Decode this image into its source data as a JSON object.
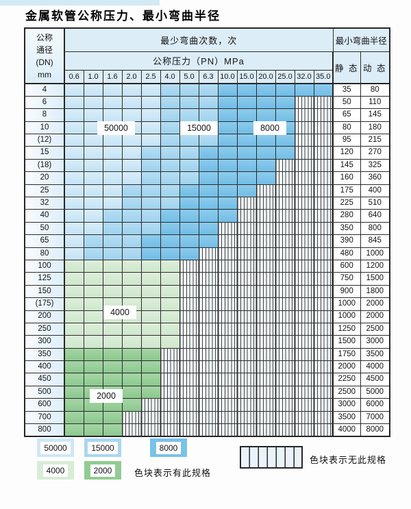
{
  "title": "金属软管公称压力、最小弯曲半径",
  "table": {
    "header": {
      "dn_label": "公称\n通径\n(DN)\nmm",
      "bend_times_label": "最少弯曲次数，次",
      "bend_radius_label": "最小弯曲半径",
      "pressure_label": "公称压力（PN）MPa",
      "static_label": "静 态",
      "dynamic_label": "动 态",
      "pressures": [
        "0.6",
        "1.0",
        "1.6",
        "2.0",
        "2.5",
        "4.0",
        "5.0",
        "6.3",
        "10.0",
        "15.0",
        "20.0",
        "25.0",
        "32.0",
        "35.0"
      ]
    },
    "cell_legend_key": {
      "L": "50000",
      "M": "15000",
      "D": "8000",
      "g": "4000",
      "G": "2000",
      "x": "no-spec"
    },
    "rows": [
      {
        "dn": "4",
        "cells": "LLLLLMMMDDDDDD",
        "static": "35",
        "dynamic": "80"
      },
      {
        "dn": "6",
        "cells": "LLLLLMMMDDDDxx",
        "static": "50",
        "dynamic": "110"
      },
      {
        "dn": "8",
        "cells": "LLLLLMMMDDDDxx",
        "static": "65",
        "dynamic": "145"
      },
      {
        "dn": "10",
        "cells": "LLLLLMMMDDDDxx",
        "static": "80",
        "dynamic": "180"
      },
      {
        "dn": "(12)",
        "cells": "LLLLLMMMDDDDxx",
        "static": "95",
        "dynamic": "215"
      },
      {
        "dn": "15",
        "cells": "LLLLMMMDDDDDxx",
        "static": "120",
        "dynamic": "270"
      },
      {
        "dn": "(18)",
        "cells": "LLLLMMMDDDDxxx",
        "static": "145",
        "dynamic": "325"
      },
      {
        "dn": "20",
        "cells": "LLLLMMMDDDDxxx",
        "static": "160",
        "dynamic": "360"
      },
      {
        "dn": "25",
        "cells": "LLLMMMDDDDxxxx",
        "static": "175",
        "dynamic": "400"
      },
      {
        "dn": "32",
        "cells": "LLLMMMDDDxxxxx",
        "static": "225",
        "dynamic": "510"
      },
      {
        "dn": "40",
        "cells": "LLMMMDDDDxxxxx",
        "static": "280",
        "dynamic": "640"
      },
      {
        "dn": "50",
        "cells": "LLMMMDDDxxxxxx",
        "static": "350",
        "dynamic": "800"
      },
      {
        "dn": "65",
        "cells": "LMMMDDDDxxxxxx",
        "static": "390",
        "dynamic": "845"
      },
      {
        "dn": "80",
        "cells": "LMMMDDDxxxxxxx",
        "static": "480",
        "dynamic": "1000"
      },
      {
        "dn": "100",
        "cells": "ggggggxxxxxxxx",
        "static": "600",
        "dynamic": "1200"
      },
      {
        "dn": "125",
        "cells": "ggggggxxxxxxxx",
        "static": "750",
        "dynamic": "1500"
      },
      {
        "dn": "150",
        "cells": "ggggggxxxxxxxx",
        "static": "900",
        "dynamic": "1800"
      },
      {
        "dn": "(175)",
        "cells": "ggggggxxxxxxxx",
        "static": "1000",
        "dynamic": "2000"
      },
      {
        "dn": "200",
        "cells": "ggggggxxxxxxxx",
        "static": "1000",
        "dynamic": "2000"
      },
      {
        "dn": "250",
        "cells": "ggggggxxxxxxxx",
        "static": "1250",
        "dynamic": "2500"
      },
      {
        "dn": "300",
        "cells": "ggggggxxxxxxxx",
        "static": "1500",
        "dynamic": "3000"
      },
      {
        "dn": "350",
        "cells": "GGGGGxxxxxxxxx",
        "static": "1750",
        "dynamic": "3500"
      },
      {
        "dn": "400",
        "cells": "GGGGGxxxxxxxxx",
        "static": "2000",
        "dynamic": "4000"
      },
      {
        "dn": "450",
        "cells": "GGGGGxxxxxxxxx",
        "static": "2250",
        "dynamic": "4500"
      },
      {
        "dn": "500",
        "cells": "GGGGGxxxxxxxxx",
        "static": "2500",
        "dynamic": "5000"
      },
      {
        "dn": "600",
        "cells": "GGGGxxxxxxxxxx",
        "static": "3000",
        "dynamic": "6000"
      },
      {
        "dn": "700",
        "cells": "GGGxxxxxxxxxxx",
        "static": "3500",
        "dynamic": "7000"
      },
      {
        "dn": "800",
        "cells": "GGGxxxxxxxxxxx",
        "static": "4000",
        "dynamic": "8000"
      }
    ]
  },
  "overlays": {
    "v50000": "50000",
    "v15000": "15000",
    "v8000": "8000",
    "v4000": "4000",
    "v2000": "2000"
  },
  "legend": {
    "items": [
      {
        "value": "50000",
        "color": "#cfe7f7"
      },
      {
        "value": "15000",
        "color": "#a9d6f0"
      },
      {
        "value": "8000",
        "color": "#79c2e9"
      },
      {
        "value": "4000",
        "color": "#d9ecd7"
      },
      {
        "value": "2000",
        "color": "#92cb93"
      }
    ],
    "has_spec_text": "色块表示有此规格",
    "no_spec_text": "色块表示无此规格"
  },
  "colors": {
    "blue_50000": "#cfe7f7",
    "blue_15000": "#a9d6f0",
    "blue_8000": "#79c2e9",
    "green_4000": "#d9ecd7",
    "green_2000": "#92cb93",
    "header_bg": "#dcedf8",
    "grid_line": "#2b2b2b"
  }
}
